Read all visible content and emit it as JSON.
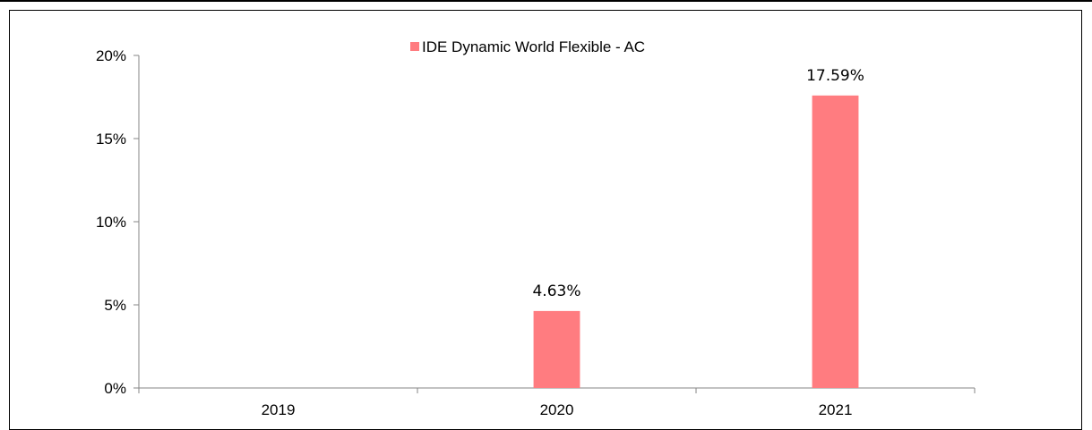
{
  "chart_data": {
    "type": "bar",
    "categories": [
      "2019",
      "2020",
      "2021"
    ],
    "series": [
      {
        "name": "IDE Dynamic World Flexible - AC",
        "values": [
          null,
          4.63,
          17.59
        ],
        "labels": [
          "",
          "4.63%",
          "17.59%"
        ],
        "color": "#ff7c80"
      }
    ],
    "yticks": [
      "0%",
      "5%",
      "10%",
      "15%",
      "20%"
    ],
    "ylim": [
      0,
      20
    ],
    "title": "",
    "xlabel": "",
    "ylabel": "",
    "grid": false,
    "legend_position": "top-center"
  }
}
